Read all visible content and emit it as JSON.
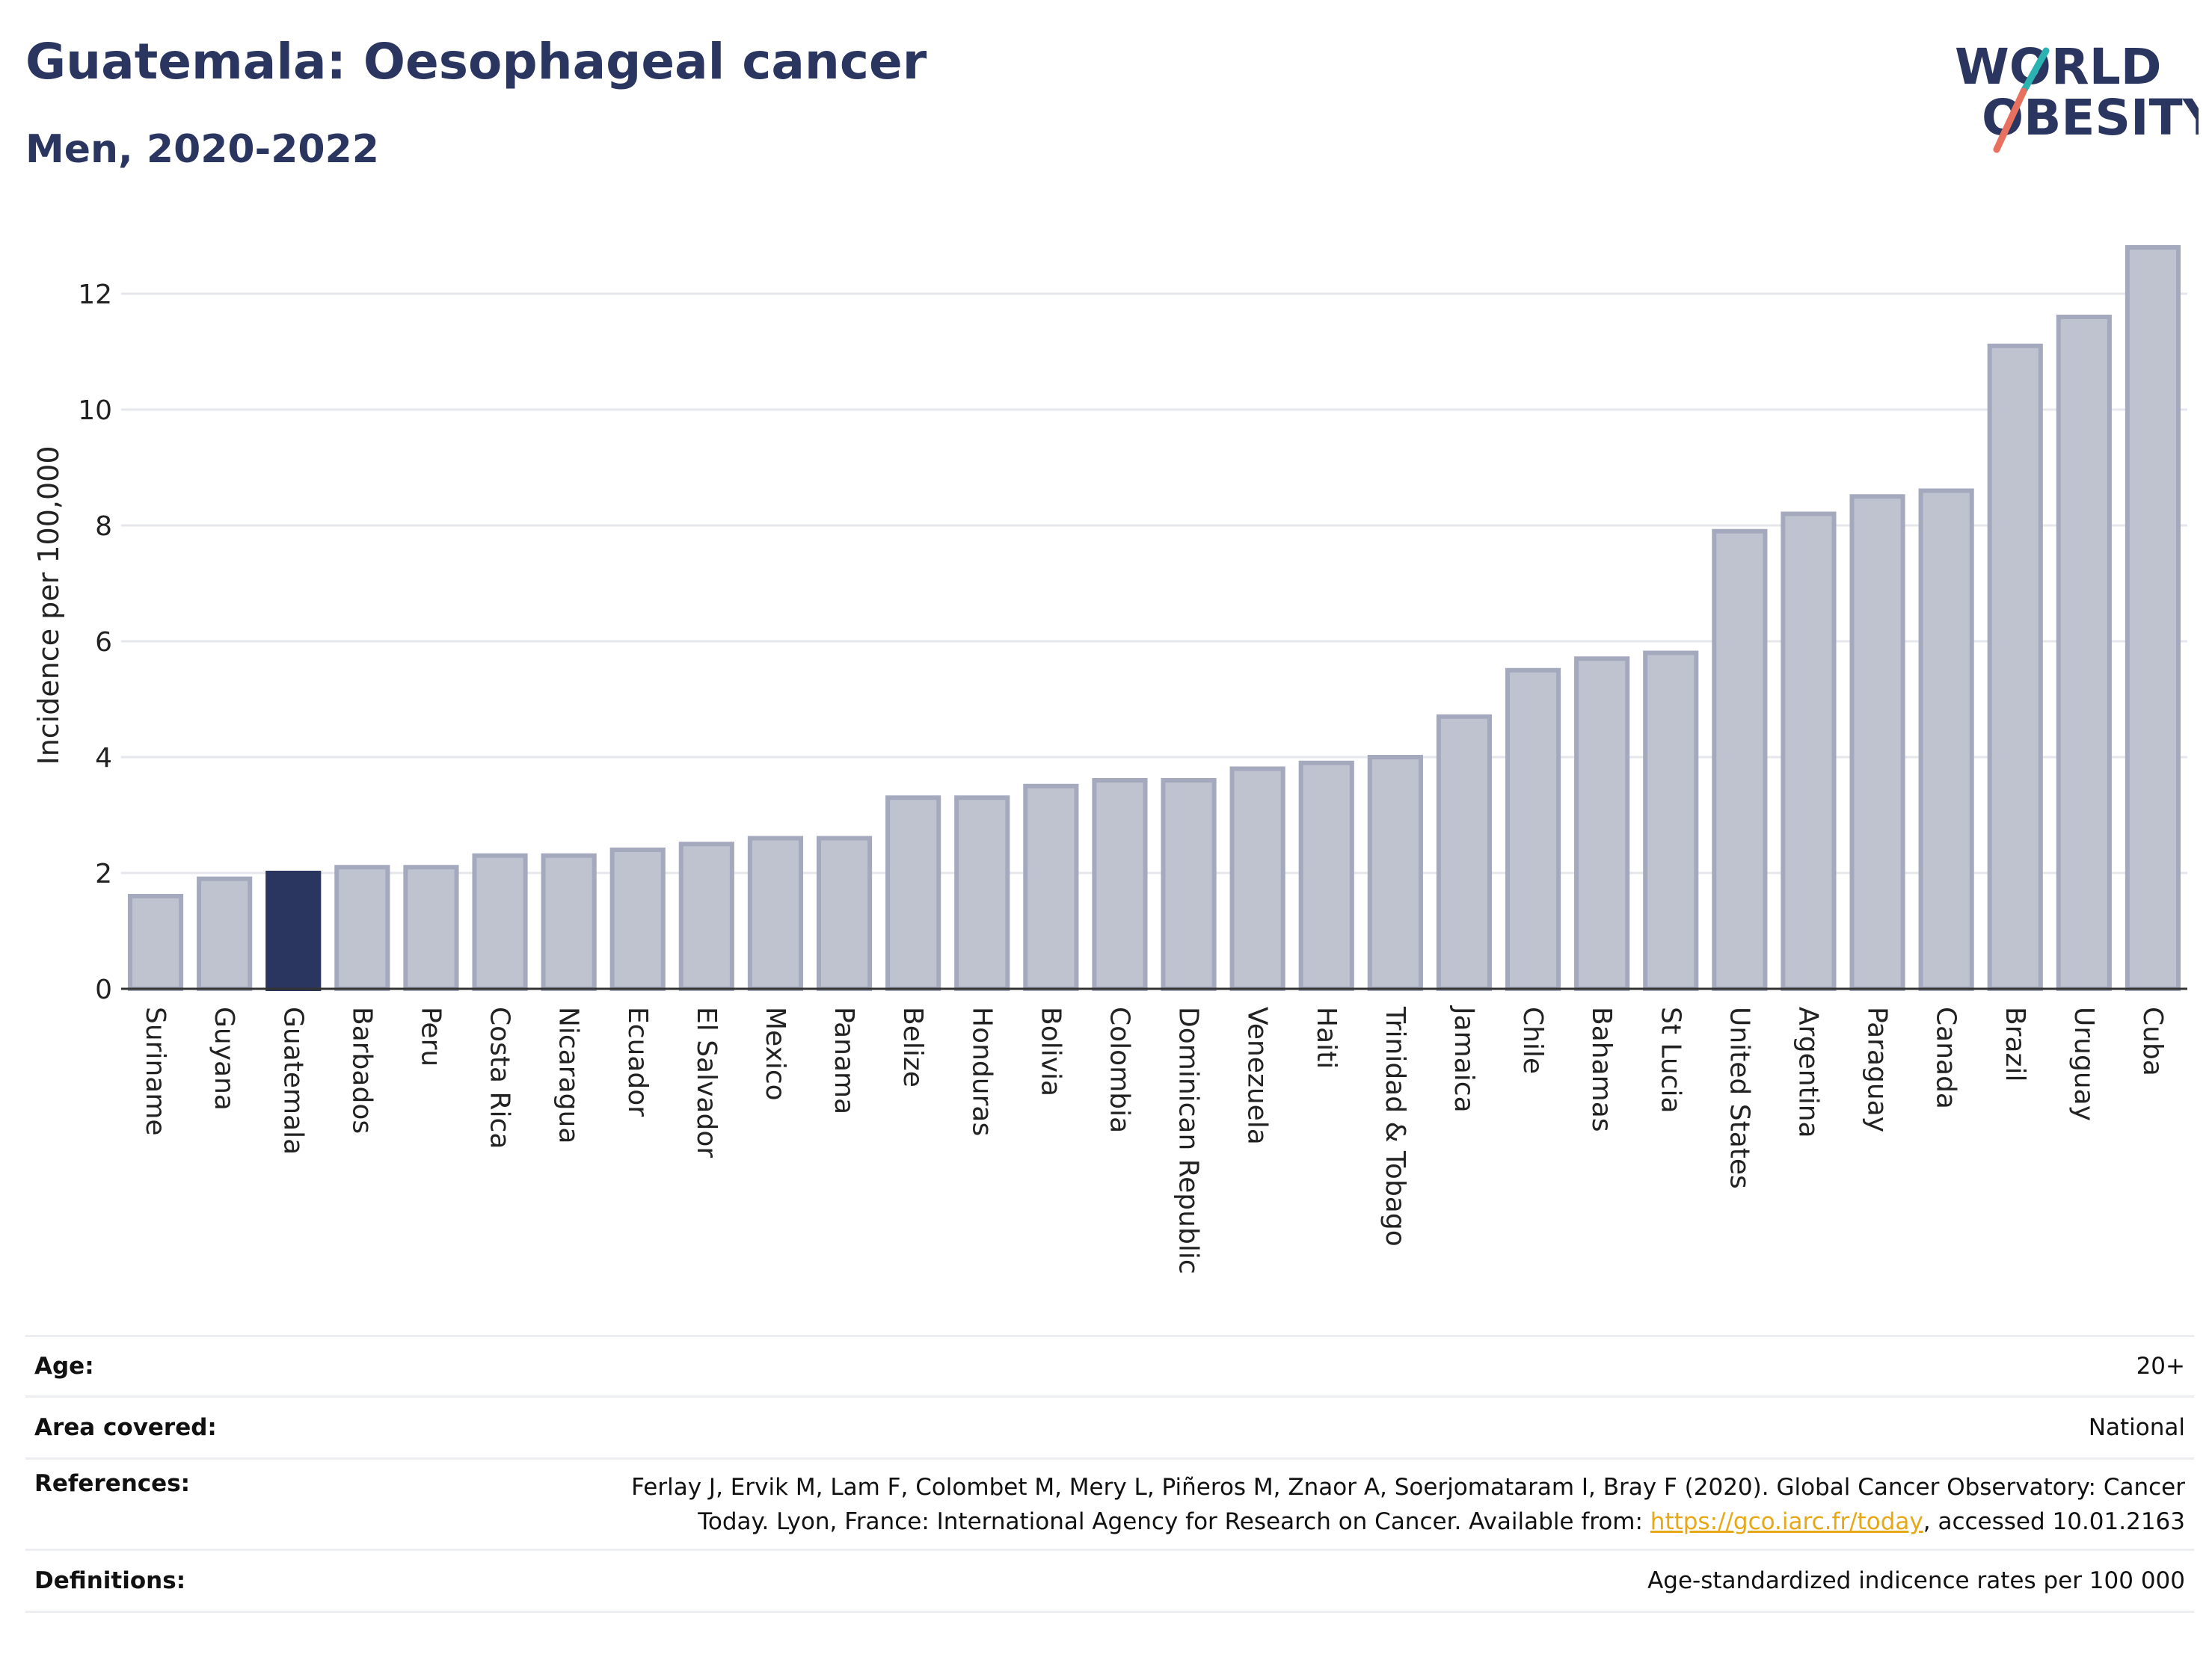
{
  "header": {
    "title": "Guatemala: Oesophageal cancer",
    "subtitle": "Men, 2020-2022",
    "logo_line1": "WORLD",
    "logo_line2": "OBESITY"
  },
  "chart_data": {
    "type": "bar",
    "ylabel": "Incidence per 100,000",
    "ylim": [
      0,
      13.2
    ],
    "yticks": [
      "0",
      "2",
      "4",
      "6",
      "8",
      "10",
      "12"
    ],
    "grid": true,
    "highlight": "Guatemala",
    "colors": {
      "bar": "#bfc3d0",
      "bar_edge": "#a4a9bd",
      "highlight": "#2a3560",
      "grid": "#e6e7ec"
    },
    "categories": [
      "Suriname",
      "Guyana",
      "Guatemala",
      "Barbados",
      "Peru",
      "Costa Rica",
      "Nicaragua",
      "Ecuador",
      "El Salvador",
      "Mexico",
      "Panama",
      "Belize",
      "Honduras",
      "Bolivia",
      "Colombia",
      "Dominican Republic",
      "Venezuela",
      "Haiti",
      "Trinidad & Tobago",
      "Jamaica",
      "Chile",
      "Bahamas",
      "St Lucia",
      "United States",
      "Argentina",
      "Paraguay",
      "Canada",
      "Brazil",
      "Uruguay",
      "Cuba"
    ],
    "values": [
      1.6,
      1.9,
      2.0,
      2.1,
      2.1,
      2.3,
      2.3,
      2.4,
      2.5,
      2.6,
      2.6,
      3.3,
      3.3,
      3.5,
      3.6,
      3.6,
      3.8,
      3.9,
      4.0,
      4.7,
      5.5,
      5.7,
      5.8,
      7.9,
      8.2,
      8.5,
      8.6,
      11.1,
      11.6,
      12.8
    ]
  },
  "meta": {
    "age_label": "Age:",
    "age_value": "20+",
    "area_label": "Area covered:",
    "area_value": "National",
    "references_label": "References:",
    "references_line1": "Ferlay J, Ervik M, Lam F, Colombet M, Mery L, Piñeros M, Znaor A, Soerjomataram I, Bray F (2020). Global Cancer Observatory: Cancer",
    "references_line2_pre": "Today. Lyon, France: International Agency for Research on Cancer. Available from: ",
    "references_link": "https://gco.iarc.fr/today",
    "references_line2_post": ", accessed 10.01.2163",
    "definitions_label": "Definitions:",
    "definitions_value": "Age-standardized indicence rates per 100 000"
  }
}
